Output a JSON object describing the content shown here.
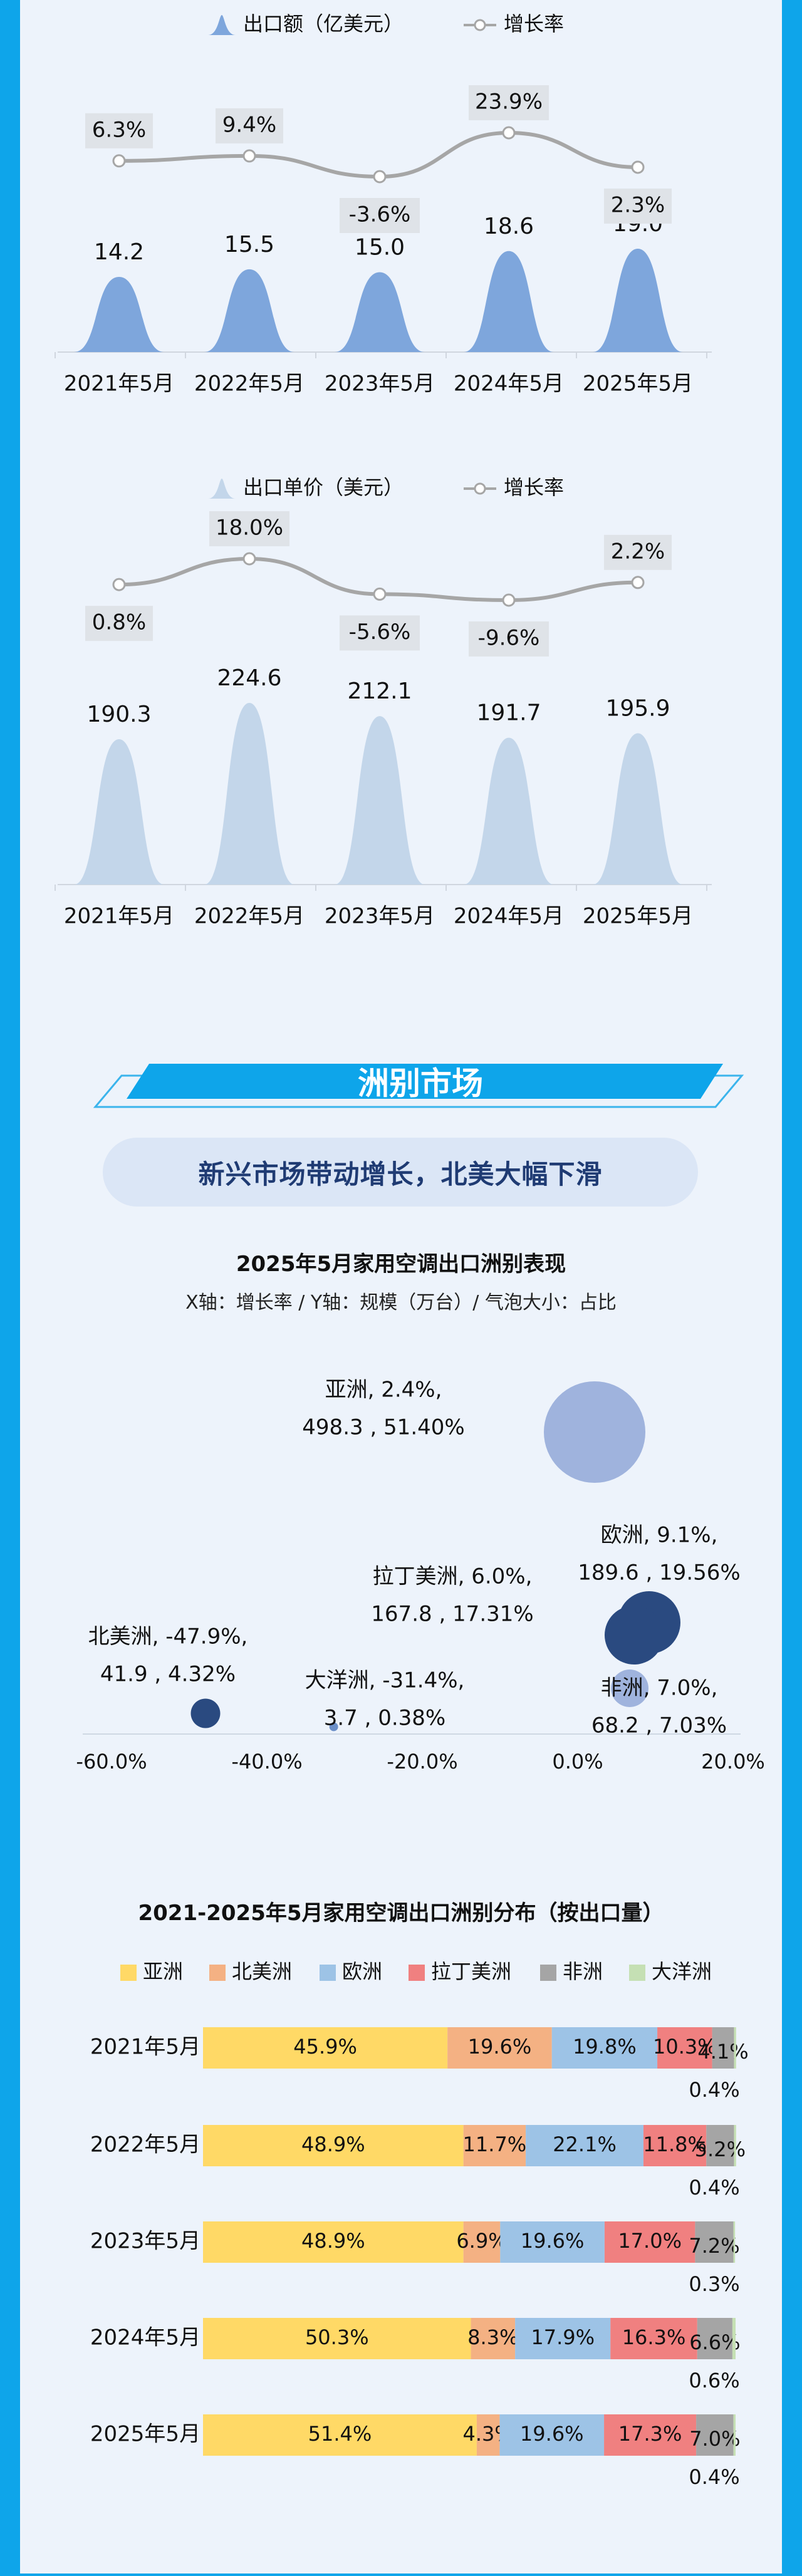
{
  "chart_data": [
    {
      "type": "area",
      "categories": [
        "2021年5月",
        "2022年5月",
        "2023年5月",
        "2024年5月",
        "2025年5月"
      ],
      "series": [
        {
          "name": "出口额（亿美元）",
          "values": [
            14.2,
            15.5,
            15.0,
            18.6,
            19.0
          ],
          "color": "#7ea6dc"
        },
        {
          "name": "增长率",
          "values": [
            "6.3%",
            "9.4%",
            "-3.6%",
            "23.9%",
            "2.3%"
          ],
          "color": "#a6a6a6"
        }
      ]
    },
    {
      "type": "area",
      "categories": [
        "2021年5月",
        "2022年5月",
        "2023年5月",
        "2024年5月",
        "2025年5月"
      ],
      "series": [
        {
          "name": "出口单价（美元）",
          "values": [
            190.3,
            224.6,
            212.1,
            191.7,
            195.9
          ],
          "color": "#c3d6ea"
        },
        {
          "name": "增长率",
          "values": [
            "0.8%",
            "18.0%",
            "-5.6%",
            "-9.6%",
            "2.2%"
          ],
          "color": "#a6a6a6"
        }
      ]
    },
    {
      "type": "scatter",
      "title": "2025年5月家用空调出口洲别表现",
      "subtitle": "X轴：增长率 / Y轴：规模（万台）/ 气泡大小：占比",
      "xticks": [
        "-60.0%",
        "-40.0%",
        "-20.0%",
        "0.0%",
        "20.0%"
      ],
      "xlim": [
        -60,
        20
      ],
      "points": [
        {
          "name": "亚洲",
          "growth": 2.4,
          "volume": 498.3,
          "share": 51.4,
          "label1": "亚洲, 2.4%,",
          "label2": "498.3 , 51.40%",
          "color": "#9fb3dd"
        },
        {
          "name": "欧洲",
          "growth": 9.1,
          "volume": 189.6,
          "share": 19.56,
          "label1": "欧洲, 9.1%,",
          "label2": "189.6 , 19.56%",
          "color": "#2a4a80"
        },
        {
          "name": "拉丁美洲",
          "growth": 6.0,
          "volume": 167.8,
          "share": 17.31,
          "label1": "拉丁美洲, 6.0%,",
          "label2": "167.8 , 17.31%",
          "color": "#2a4a80"
        },
        {
          "name": "非洲",
          "growth": 7.0,
          "volume": 68.2,
          "share": 7.03,
          "label1": "非洲, 7.0%,",
          "label2": "68.2 , 7.03%",
          "color": "#9fb3dd"
        },
        {
          "name": "北美洲",
          "growth": -47.9,
          "volume": 41.9,
          "share": 4.32,
          "label1": "北美洲, -47.9%,",
          "label2": "41.9 , 4.32%",
          "color": "#2a4a80"
        },
        {
          "name": "大洋洲",
          "growth": -31.4,
          "volume": 3.7,
          "share": 0.38,
          "label1": "大洋洲, -31.4%,",
          "label2": "3.7 , 0.38%",
          "color": "#6b8fc8"
        }
      ]
    },
    {
      "type": "bar",
      "title": "2021-2025年5月家用空调出口洲别分布（按出口量）",
      "categories": [
        "2021年5月",
        "2022年5月",
        "2023年5月",
        "2024年5月",
        "2025年5月"
      ],
      "series": [
        {
          "name": "亚洲",
          "values": [
            45.9,
            48.9,
            48.9,
            50.3,
            51.4
          ],
          "color": "#ffd966"
        },
        {
          "name": "北美洲",
          "values": [
            19.6,
            11.7,
            6.9,
            8.3,
            4.3
          ],
          "color": "#f4b183"
        },
        {
          "name": "欧洲",
          "values": [
            19.8,
            22.1,
            19.6,
            17.9,
            19.6
          ],
          "color": "#9dc3e6"
        },
        {
          "name": "拉丁美洲",
          "values": [
            10.3,
            11.8,
            17.0,
            16.3,
            17.3
          ],
          "color": "#f08080"
        },
        {
          "name": "非洲",
          "values": [
            4.1,
            5.2,
            7.2,
            6.6,
            7.0
          ],
          "color": "#a5a5a5"
        },
        {
          "name": "大洋洲",
          "values": [
            0.4,
            0.4,
            0.3,
            0.6,
            0.4
          ],
          "color": "#c5e0b4"
        }
      ]
    }
  ],
  "section": {
    "title": "洲别市场",
    "subtitle": "新兴市场带动增长，北美大幅下滑"
  }
}
